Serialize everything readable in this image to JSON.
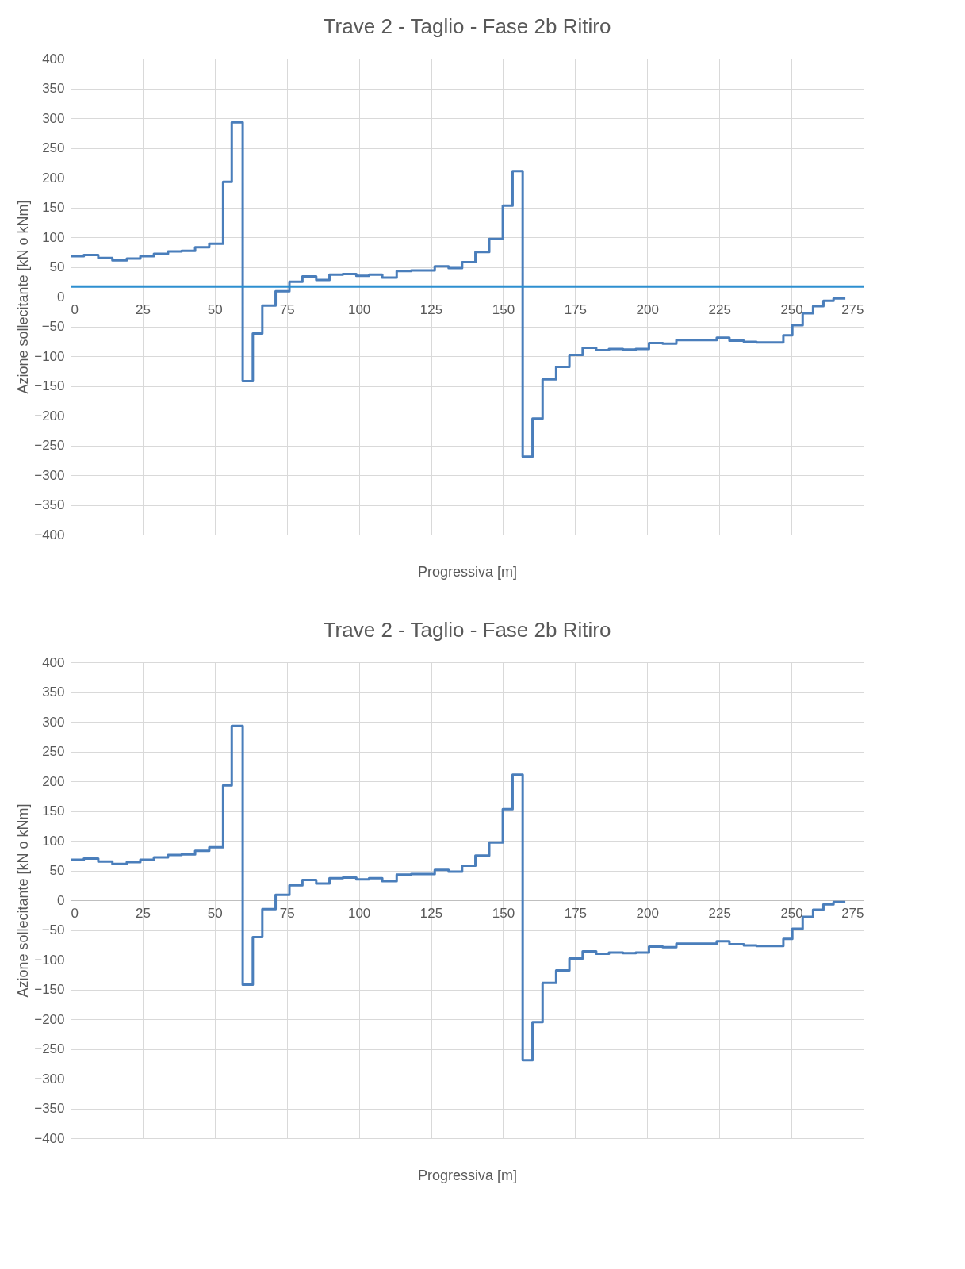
{
  "chart_data": [
    {
      "type": "step",
      "title": "Trave 2 - Taglio - Fase 2b Ritiro",
      "xlabel": "Progressiva [m]",
      "ylabel": "Azione sollecitante [kN o kNm]",
      "series": [
        {
          "color": "#4a7ebb",
          "x": [
            0,
            4.6,
            9.6,
            14.5,
            19.5,
            24.2,
            28.9,
            33.8,
            38.5,
            43.2,
            48.1,
            52.9,
            55.9,
            59.7,
            63.2,
            66.5,
            71.1,
            75.9,
            80.4,
            85.2,
            89.8,
            94.4,
            99.1,
            103.5,
            108.1,
            113.1,
            118.1,
            126.3,
            131.1,
            135.8,
            140.4,
            145.2,
            149.9,
            153.3,
            156.8,
            160.2,
            163.7,
            168.4,
            173.0,
            177.6,
            182.3,
            186.7,
            191.6,
            196.0,
            200.6,
            205.4,
            210.1,
            224.1,
            228.5,
            233.5,
            237.9,
            247.2,
            250.3,
            253.9,
            257.5,
            261.1,
            264.6,
            268.7
          ],
          "values": [
            68,
            70,
            65,
            61,
            64,
            68,
            72,
            76,
            77,
            83,
            89,
            193,
            293,
            -142,
            -62,
            -15,
            9,
            25,
            34,
            28,
            37,
            38,
            35,
            37,
            32,
            43,
            44,
            51,
            48,
            58,
            75,
            97,
            153,
            211,
            -269,
            -205,
            -139,
            -118,
            -98,
            -86,
            -90,
            -88,
            -89,
            -88,
            -78,
            -79,
            -73,
            -69,
            -74,
            -76,
            -77,
            -65,
            -48,
            -28,
            -16,
            -7,
            -3,
            -3
          ]
        }
      ],
      "xlim": [
        0,
        275
      ],
      "xticks": [
        0,
        25,
        50,
        75,
        100,
        125,
        150,
        175,
        200,
        225,
        250,
        275
      ],
      "ylim": [
        -400,
        400
      ],
      "yticks": [
        -400,
        -350,
        -300,
        -250,
        -200,
        -150,
        -100,
        -50,
        0,
        50,
        100,
        150,
        200,
        250,
        300,
        350,
        400
      ],
      "grid": true,
      "line_style": "solid",
      "ref_lines": [
        {
          "axis": "y",
          "value": 17,
          "color": "#2e8fd0"
        }
      ]
    },
    {
      "type": "step",
      "title": "Trave 2 - Taglio - Fase 2b Ritiro",
      "xlabel": "Progressiva [m]",
      "ylabel": "Azione sollecitante [kN o kNm]",
      "series": [
        {
          "color": "#4a7ebb",
          "x": [
            0,
            4.6,
            9.6,
            14.5,
            19.5,
            24.2,
            28.9,
            33.8,
            38.5,
            43.2,
            48.1,
            52.9,
            55.9,
            59.7,
            63.2,
            66.5,
            71.1,
            75.9,
            80.4,
            85.2,
            89.8,
            94.4,
            99.1,
            103.5,
            108.1,
            113.1,
            118.1,
            126.3,
            131.1,
            135.8,
            140.4,
            145.2,
            149.9,
            153.3,
            156.8,
            160.2,
            163.7,
            168.4,
            173.0,
            177.6,
            182.3,
            186.7,
            191.6,
            196.0,
            200.6,
            205.4,
            210.1,
            224.1,
            228.5,
            233.5,
            237.9,
            247.2,
            250.3,
            253.9,
            257.5,
            261.1,
            264.6,
            268.7
          ],
          "values": [
            68,
            70,
            65,
            61,
            64,
            68,
            72,
            76,
            77,
            83,
            89,
            193,
            293,
            -142,
            -62,
            -15,
            9,
            25,
            34,
            28,
            37,
            38,
            35,
            37,
            32,
            43,
            44,
            51,
            48,
            58,
            75,
            97,
            153,
            211,
            -269,
            -205,
            -139,
            -118,
            -98,
            -86,
            -90,
            -88,
            -89,
            -88,
            -78,
            -79,
            -73,
            -69,
            -74,
            -76,
            -77,
            -65,
            -48,
            -28,
            -16,
            -7,
            -3,
            -3
          ]
        }
      ],
      "xlim": [
        0,
        275
      ],
      "xticks": [
        0,
        25,
        50,
        75,
        100,
        125,
        150,
        175,
        200,
        225,
        250,
        275
      ],
      "ylim": [
        -400,
        400
      ],
      "yticks": [
        -400,
        -350,
        -300,
        -250,
        -200,
        -150,
        -100,
        -50,
        0,
        50,
        100,
        150,
        200,
        250,
        300,
        350,
        400
      ],
      "grid": true,
      "line_style": "solid"
    }
  ]
}
